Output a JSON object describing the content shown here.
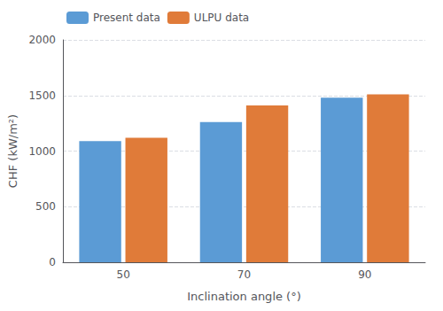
{
  "chart_data": {
    "type": "bar",
    "categories": [
      "50",
      "70",
      "90"
    ],
    "series": [
      {
        "name": "Present data",
        "color": "#5b9bd5",
        "values": [
          1090,
          1260,
          1480
        ]
      },
      {
        "name": "ULPU data",
        "color": "#e07b39",
        "values": [
          1120,
          1410,
          1510
        ]
      }
    ],
    "xlabel": "Inclination angle (°)",
    "ylabel": "CHF (kW/m²)",
    "ylim": [
      0,
      2000
    ],
    "yticks": [
      0,
      500,
      1000,
      1500,
      2000
    ],
    "grid": true,
    "legend": "upper left"
  }
}
